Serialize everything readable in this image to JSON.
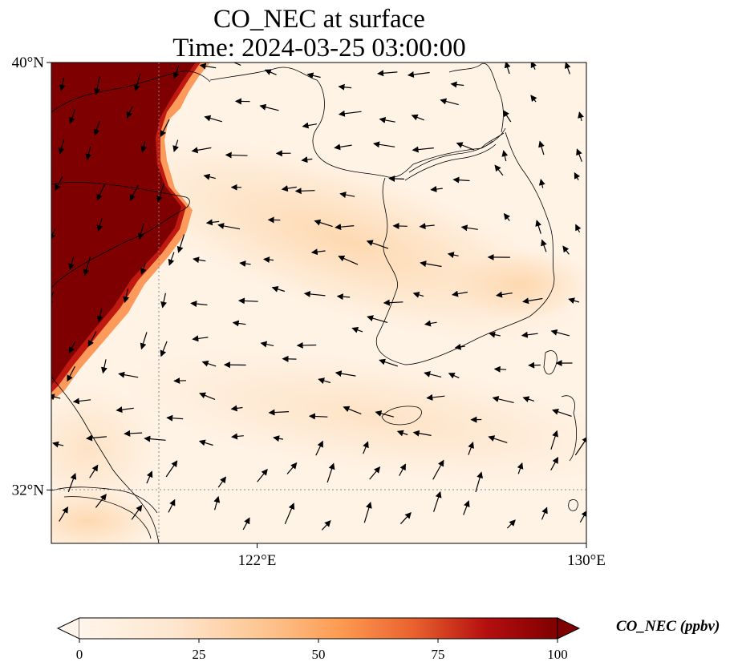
{
  "title": "CO_NEC at surface",
  "subtitle": "Time: 2024-03-25 03:00:00",
  "map": {
    "lon_range": [
      117,
      130
    ],
    "lat_range": [
      31,
      40
    ],
    "lat_ticks": [
      {
        "value": 40,
        "label": "40°N"
      },
      {
        "value": 32,
        "label": "32°N"
      }
    ],
    "lon_ticks": [
      {
        "value": 122,
        "label": "122°E"
      },
      {
        "value": 130,
        "label": "130°E"
      }
    ],
    "gridlines": true,
    "coastlines": true,
    "wind_vectors": true,
    "colormap": [
      "#fff5eb",
      "#fdd9b5",
      "#fdae6b",
      "#e6550d",
      "#a50f15",
      "#7f0000"
    ]
  },
  "colorbar": {
    "label": "CO_NEC (ppbv)",
    "range": [
      0,
      100
    ],
    "ticks": [
      "0",
      "25",
      "50",
      "75",
      "100"
    ],
    "extend": "both",
    "orientation": "horizontal"
  }
}
